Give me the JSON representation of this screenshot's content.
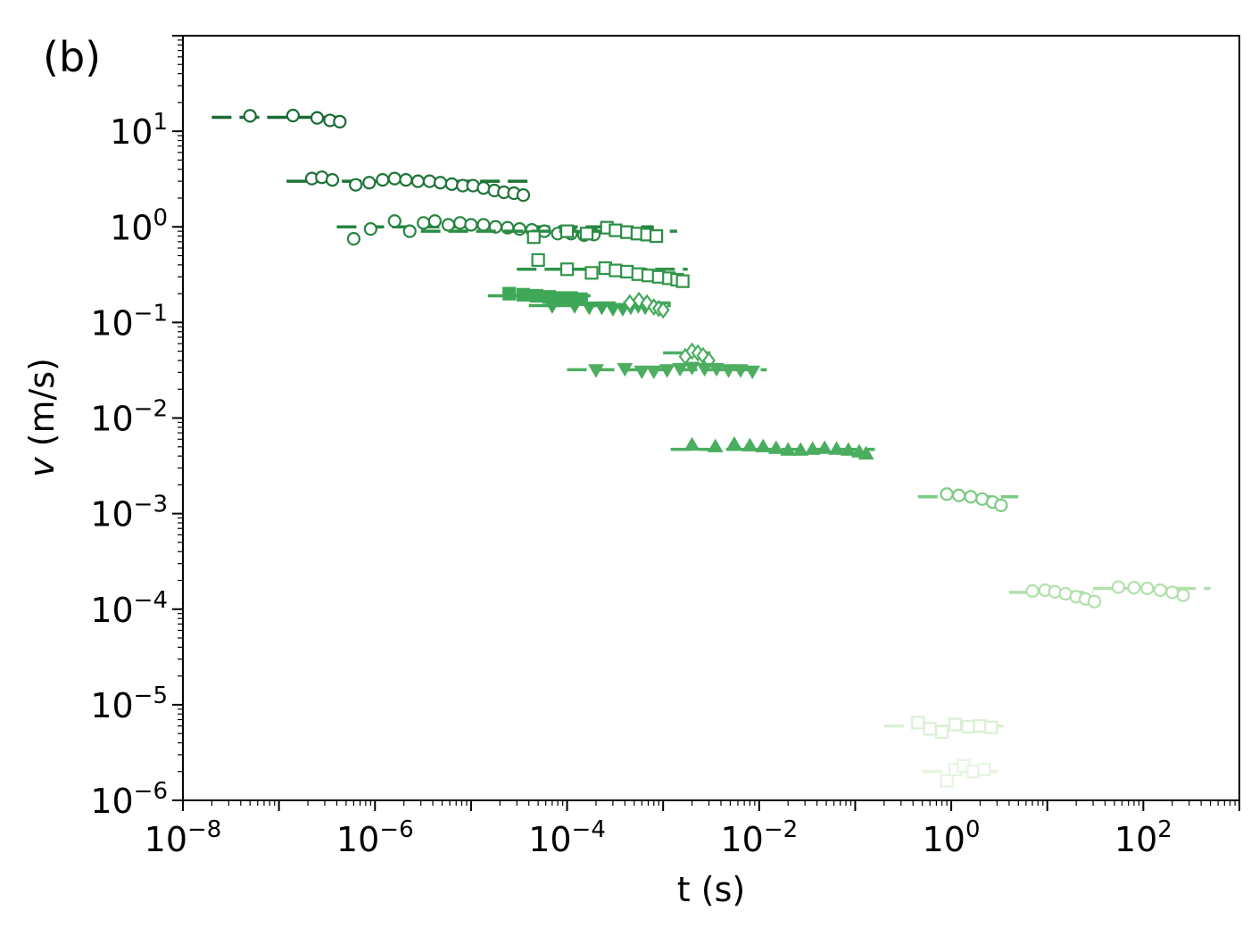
{
  "panel_label": "(b)",
  "chart_data": {
    "type": "scatter",
    "xscale": "log",
    "yscale": "log",
    "xlabel": "t (s)",
    "ylabel_italic": "v",
    "ylabel_units": " (m/s)",
    "xlim": [
      1e-08,
      1000
    ],
    "ylim": [
      1e-06,
      100
    ],
    "xticks": [
      {
        "value": 1e-08,
        "base": "10",
        "exp": "−8"
      },
      {
        "value": 1e-06,
        "base": "10",
        "exp": "−6"
      },
      {
        "value": 0.0001,
        "base": "10",
        "exp": "−4"
      },
      {
        "value": 0.01,
        "base": "10",
        "exp": "−2"
      },
      {
        "value": 1,
        "base": "10",
        "exp": "0"
      },
      {
        "value": 100,
        "base": "10",
        "exp": "2"
      }
    ],
    "yticks": [
      {
        "value": 1e-06,
        "base": "10",
        "exp": "−6"
      },
      {
        "value": 1e-05,
        "base": "10",
        "exp": "−5"
      },
      {
        "value": 0.0001,
        "base": "10",
        "exp": "−4"
      },
      {
        "value": 0.001,
        "base": "10",
        "exp": "−3"
      },
      {
        "value": 0.01,
        "base": "10",
        "exp": "−2"
      },
      {
        "value": 0.1,
        "base": "10",
        "exp": "−1"
      },
      {
        "value": 1,
        "base": "10",
        "exp": "0"
      },
      {
        "value": 10,
        "base": "10",
        "exp": "1"
      }
    ],
    "grid": false,
    "series": [
      {
        "marker": "circle",
        "color": "#1a6b35",
        "fill": false,
        "t_range": [
          2e-08,
          4.8e-07
        ],
        "v_line": 14,
        "points": [
          [
            5e-08,
            14.5
          ],
          [
            1.4e-07,
            14.6
          ],
          [
            2.5e-07,
            13.8
          ],
          [
            3.4e-07,
            13.0
          ],
          [
            4.3e-07,
            12.6
          ]
        ]
      },
      {
        "marker": "circle",
        "color": "#1d7338",
        "fill": false,
        "t_range": [
          1.2e-07,
          4.5e-05
        ],
        "v_line": 3.0,
        "points": [
          [
            2.2e-07,
            3.2
          ],
          [
            2.8e-07,
            3.3
          ],
          [
            3.6e-07,
            3.1
          ],
          [
            6.3e-07,
            2.75
          ],
          [
            8.7e-07,
            2.9
          ],
          [
            1.2e-06,
            3.1
          ],
          [
            1.6e-06,
            3.2
          ],
          [
            2.1e-06,
            3.1
          ],
          [
            2.8e-06,
            3.0
          ],
          [
            3.7e-06,
            3.0
          ],
          [
            4.8e-06,
            2.9
          ],
          [
            6.3e-06,
            2.8
          ],
          [
            8.2e-06,
            2.7
          ],
          [
            1.05e-05,
            2.7
          ],
          [
            1.35e-05,
            2.55
          ],
          [
            1.75e-05,
            2.4
          ],
          [
            2.2e-05,
            2.3
          ],
          [
            2.8e-05,
            2.25
          ],
          [
            3.5e-05,
            2.15
          ]
        ]
      },
      {
        "marker": "circle",
        "color": "#26853f",
        "fill": false,
        "t_range": [
          4e-07,
          0.0008
        ],
        "v_line": 1.0,
        "points": [
          [
            6e-07,
            0.75
          ],
          [
            9e-07,
            0.95
          ],
          [
            1.6e-06,
            1.15
          ],
          [
            2.3e-06,
            0.9
          ],
          [
            3.2e-06,
            1.1
          ],
          [
            4.2e-06,
            1.15
          ],
          [
            5.8e-06,
            1.05
          ],
          [
            7.7e-06,
            1.1
          ],
          [
            1e-05,
            1.05
          ],
          [
            1.35e-05,
            1.05
          ],
          [
            1.8e-05,
            1.0
          ],
          [
            2.4e-05,
            0.98
          ],
          [
            3.2e-05,
            0.95
          ],
          [
            4.3e-05,
            0.93
          ],
          [
            5.8e-05,
            0.9
          ],
          [
            8e-05,
            0.85
          ],
          [
            0.00011,
            0.85
          ],
          [
            0.00015,
            0.82
          ],
          [
            0.00019,
            0.83
          ]
        ]
      },
      {
        "marker": "square",
        "color": "#2a8c44",
        "fill": false,
        "t_range": [
          3e-06,
          0.0014
        ],
        "v_line": 0.9,
        "points": [
          [
            4.5e-05,
            0.78
          ],
          [
            0.0001,
            0.9
          ],
          [
            0.00016,
            0.85
          ],
          [
            0.00026,
            0.98
          ],
          [
            0.00032,
            0.92
          ],
          [
            0.00042,
            0.88
          ],
          [
            0.00054,
            0.85
          ],
          [
            0.00068,
            0.83
          ],
          [
            0.00085,
            0.8
          ]
        ]
      },
      {
        "marker": "square",
        "color": "#2f944a",
        "fill": false,
        "t_range": [
          3e-05,
          0.0018
        ],
        "v_line": 0.36,
        "points": [
          [
            5e-05,
            0.45
          ],
          [
            0.0001,
            0.36
          ],
          [
            0.00018,
            0.33
          ],
          [
            0.00025,
            0.37
          ],
          [
            0.00032,
            0.35
          ],
          [
            0.00042,
            0.34
          ],
          [
            0.00055,
            0.32
          ],
          [
            0.0007,
            0.31
          ],
          [
            0.0009,
            0.3
          ],
          [
            0.00115,
            0.29
          ],
          [
            0.0014,
            0.28
          ],
          [
            0.0016,
            0.27
          ]
        ]
      },
      {
        "marker": "square",
        "color": "#3ea858",
        "fill": true,
        "t_range": [
          1.5e-05,
          0.0002
        ],
        "v_line": 0.19,
        "points": [
          [
            2.5e-05,
            0.2
          ],
          [
            3.5e-05,
            0.195
          ],
          [
            4.8e-05,
            0.19
          ],
          [
            6.5e-05,
            0.185
          ],
          [
            8.5e-05,
            0.18
          ],
          [
            0.00011,
            0.18
          ],
          [
            0.00014,
            0.175
          ]
        ]
      },
      {
        "marker": "triangle-down",
        "color": "#3ea858",
        "fill": true,
        "t_range": [
          4e-05,
          0.0012
        ],
        "v_line": 0.15,
        "points": [
          [
            7e-05,
            0.15
          ],
          [
            0.00012,
            0.15
          ],
          [
            0.00017,
            0.145
          ],
          [
            0.00023,
            0.145
          ],
          [
            0.0003,
            0.14
          ],
          [
            0.00038,
            0.14
          ],
          [
            0.00046,
            0.145
          ],
          [
            0.00055,
            0.15
          ],
          [
            0.00065,
            0.145
          ]
        ]
      },
      {
        "marker": "diamond",
        "color": "#42a85c",
        "fill": false,
        "t_range": [
          0.0002,
          0.0012
        ],
        "v_line": 0.16,
        "points": [
          [
            0.00045,
            0.16
          ],
          [
            0.00056,
            0.17
          ],
          [
            0.00068,
            0.16
          ],
          [
            0.0008,
            0.145
          ],
          [
            0.0009,
            0.14
          ],
          [
            0.001,
            0.135
          ]
        ]
      },
      {
        "marker": "diamond",
        "color": "#4dae60",
        "fill": false,
        "t_range": [
          0.001,
          0.0035
        ],
        "v_line": 0.048,
        "points": [
          [
            0.0017,
            0.044
          ],
          [
            0.002,
            0.05
          ],
          [
            0.0023,
            0.048
          ],
          [
            0.0026,
            0.045
          ],
          [
            0.003,
            0.04
          ]
        ]
      },
      {
        "marker": "triangle-down",
        "color": "#4dae60",
        "fill": true,
        "t_range": [
          0.0001,
          0.012
        ],
        "v_line": 0.032,
        "points": [
          [
            0.0002,
            0.032
          ],
          [
            0.0004,
            0.033
          ],
          [
            0.0006,
            0.031
          ],
          [
            0.0008,
            0.031
          ],
          [
            0.0011,
            0.032
          ],
          [
            0.0015,
            0.033
          ],
          [
            0.002,
            0.034
          ],
          [
            0.0027,
            0.033
          ],
          [
            0.0036,
            0.033
          ],
          [
            0.0048,
            0.032
          ],
          [
            0.0064,
            0.032
          ],
          [
            0.0085,
            0.031
          ]
        ]
      },
      {
        "marker": "triangle-up",
        "color": "#4aad5f",
        "fill": true,
        "t_range": [
          0.0012,
          0.16
        ],
        "v_line": 0.0047,
        "points": [
          [
            0.002,
            0.0052
          ],
          [
            0.0035,
            0.005
          ],
          [
            0.0055,
            0.0053
          ],
          [
            0.008,
            0.0051
          ],
          [
            0.011,
            0.005
          ],
          [
            0.015,
            0.0048
          ],
          [
            0.02,
            0.0046
          ],
          [
            0.027,
            0.0046
          ],
          [
            0.036,
            0.0047
          ],
          [
            0.048,
            0.0048
          ],
          [
            0.064,
            0.0047
          ],
          [
            0.085,
            0.0046
          ],
          [
            0.11,
            0.0044
          ],
          [
            0.13,
            0.0042
          ]
        ]
      },
      {
        "marker": "circle",
        "color": "#7ccb83",
        "fill": false,
        "t_range": [
          0.45,
          5
        ],
        "v_line": 0.0015,
        "points": [
          [
            0.9,
            0.0016
          ],
          [
            1.2,
            0.00155
          ],
          [
            1.6,
            0.0015
          ],
          [
            2.1,
            0.00142
          ],
          [
            2.7,
            0.00132
          ],
          [
            3.3,
            0.00122
          ]
        ]
      },
      {
        "marker": "circle",
        "color": "#b1e0ac",
        "fill": false,
        "t_range": [
          4,
          30
        ],
        "v_line": 0.00015,
        "points": [
          [
            7,
            0.000155
          ],
          [
            9.5,
            0.000158
          ],
          [
            12,
            0.000152
          ],
          [
            15.5,
            0.000145
          ],
          [
            20,
            0.000135
          ],
          [
            25,
            0.000128
          ],
          [
            31,
            0.00012
          ]
        ]
      },
      {
        "marker": "circle",
        "color": "#b1e0ac",
        "fill": false,
        "t_range": [
          30,
          500
        ],
        "v_line": 0.000165,
        "points": [
          [
            55,
            0.00017
          ],
          [
            80,
            0.000168
          ],
          [
            110,
            0.000165
          ],
          [
            150,
            0.000158
          ],
          [
            200,
            0.00015
          ],
          [
            260,
            0.00014
          ]
        ]
      },
      {
        "marker": "square",
        "color": "#daf0d4",
        "fill": false,
        "t_range": [
          0.2,
          3.5
        ],
        "v_line": 6e-06,
        "points": [
          [
            0.45,
            6.5e-06
          ],
          [
            0.6,
            5.6e-06
          ],
          [
            0.8,
            5.2e-06
          ],
          [
            1.1,
            6.2e-06
          ],
          [
            1.5,
            5.9e-06
          ],
          [
            2,
            6e-06
          ],
          [
            2.6,
            5.8e-06
          ]
        ]
      },
      {
        "marker": "square",
        "color": "#e6f5e1",
        "fill": false,
        "t_range": [
          0.5,
          3.5
        ],
        "v_line": 2e-06,
        "points": [
          [
            0.9,
            1.6e-06
          ],
          [
            1.1,
            2.1e-06
          ],
          [
            1.35,
            2.3e-06
          ],
          [
            1.7,
            2e-06
          ],
          [
            2.2,
            2.1e-06
          ]
        ]
      }
    ]
  }
}
